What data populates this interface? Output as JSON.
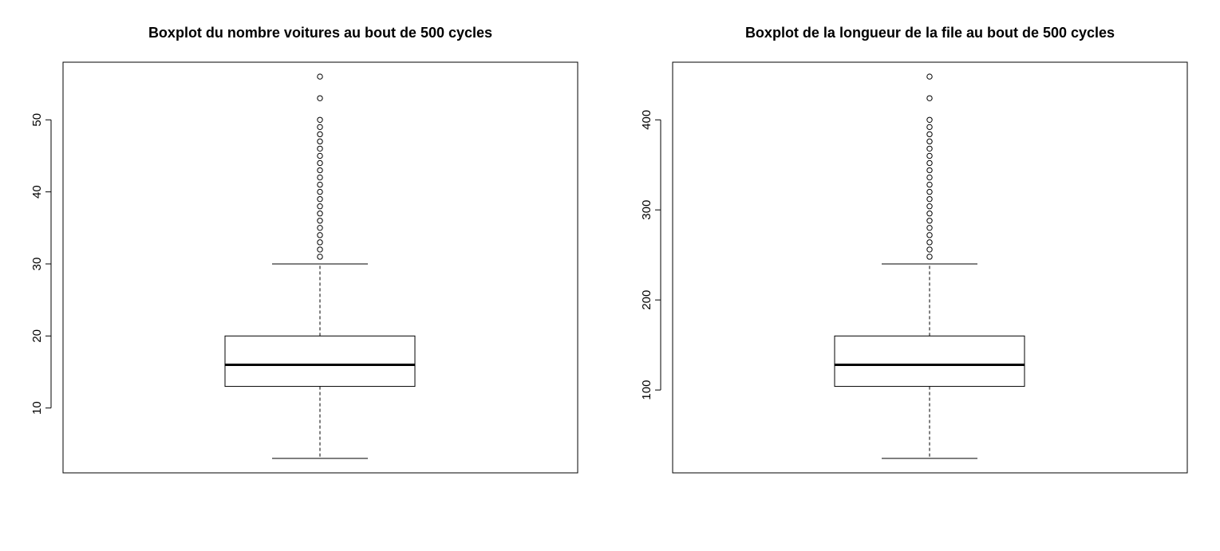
{
  "chart_data": [
    {
      "type": "boxplot",
      "title": "Boxplot du nombre voitures au bout de 500 cycles",
      "ylim": [
        1,
        58
      ],
      "yticks": [
        10,
        20,
        30,
        40,
        50
      ],
      "grid": false,
      "box": {
        "min": 3,
        "q1": 13,
        "median": 16,
        "q3": 20,
        "max": 30
      },
      "outliers": [
        31,
        32,
        33,
        34,
        35,
        36,
        37,
        38,
        39,
        40,
        41,
        42,
        43,
        44,
        45,
        46,
        47,
        48,
        49,
        50,
        53,
        56
      ]
    },
    {
      "type": "boxplot",
      "title": "Boxplot de la longueur de la file au bout de 500 cycles",
      "ylim": [
        8,
        464
      ],
      "yticks": [
        100,
        200,
        300,
        400
      ],
      "grid": false,
      "box": {
        "min": 24,
        "q1": 104,
        "median": 128,
        "q3": 160,
        "max": 240
      },
      "outliers": [
        248,
        256,
        264,
        272,
        280,
        288,
        296,
        304,
        312,
        320,
        328,
        336,
        344,
        352,
        360,
        368,
        376,
        384,
        392,
        400,
        424,
        448
      ]
    }
  ]
}
